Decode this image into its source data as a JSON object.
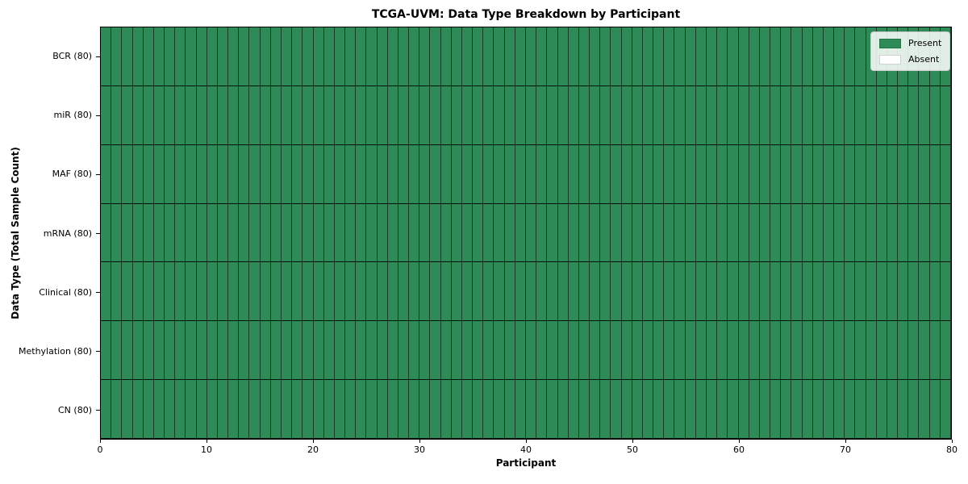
{
  "figure": {
    "title": "TCGA-UVM: Data Type Breakdown by Participant",
    "xlabel": "Participant",
    "ylabel": "Data Type (Total Sample Count)"
  },
  "legend": {
    "position": "upper-right",
    "items": [
      {
        "label": "Present",
        "color": "#2e8b57"
      },
      {
        "label": "Absent",
        "color": "#ffffff"
      }
    ]
  },
  "chart_data": {
    "type": "heatmap",
    "title": "TCGA-UVM: Data Type Breakdown by Participant",
    "xlabel": "Participant",
    "ylabel": "Data Type (Total Sample Count)",
    "x_range": [
      0,
      80
    ],
    "x_ticks": [
      0,
      10,
      20,
      30,
      40,
      50,
      60,
      70,
      80
    ],
    "n_participants": 80,
    "rows": [
      {
        "label": "BCR (80)",
        "name": "BCR",
        "total_samples": 80,
        "present_count": 80,
        "absent_count": 0
      },
      {
        "label": "miR (80)",
        "name": "miR",
        "total_samples": 80,
        "present_count": 80,
        "absent_count": 0
      },
      {
        "label": "MAF (80)",
        "name": "MAF",
        "total_samples": 80,
        "present_count": 80,
        "absent_count": 0
      },
      {
        "label": "mRNA (80)",
        "name": "mRNA",
        "total_samples": 80,
        "present_count": 80,
        "absent_count": 0
      },
      {
        "label": "Clinical (80)",
        "name": "Clinical",
        "total_samples": 80,
        "present_count": 80,
        "absent_count": 0
      },
      {
        "label": "Methylation (80)",
        "name": "Methylation",
        "total_samples": 80,
        "present_count": 80,
        "absent_count": 0
      },
      {
        "label": "CN (80)",
        "name": "CN",
        "total_samples": 80,
        "present_count": 80,
        "absent_count": 0
      }
    ],
    "cell_states": [
      "present",
      "absent"
    ],
    "all_cells_state": "present",
    "colors": {
      "present": "#2e8b57",
      "absent": "#ffffff",
      "cell_edge": "#1c1c1c",
      "spine": "#000000"
    },
    "grid": true,
    "legend_position": "upper right"
  }
}
